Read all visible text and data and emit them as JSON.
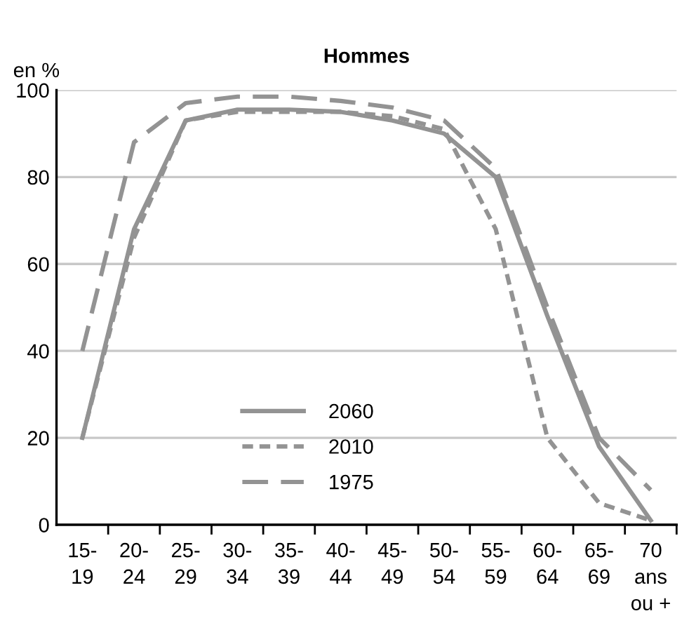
{
  "chart_data": {
    "type": "line",
    "title": "Hommes",
    "ylabel": "en %",
    "categories": [
      "15-\n19",
      "20-\n24",
      "25-\n29",
      "30-\n34",
      "35-\n39",
      "40-\n44",
      "45-\n49",
      "50-\n54",
      "55-\n59",
      "60-\n64",
      "65-\n69",
      "70\nans\nou +"
    ],
    "series": [
      {
        "name": "2060",
        "color": "#939393",
        "line_style": "solid",
        "values": [
          20,
          68,
          93,
          95.5,
          95.5,
          95,
          93,
          90,
          80,
          48,
          18,
          1
        ]
      },
      {
        "name": "2010",
        "color": "#939393",
        "line_style": "dotted",
        "values": [
          20,
          66,
          93,
          95,
          95,
          95,
          94,
          91,
          68,
          20,
          5,
          1
        ]
      },
      {
        "name": "1975",
        "color": "#939393",
        "line_style": "dashed",
        "values": [
          40,
          88,
          97,
          98.5,
          98.5,
          97.5,
          96,
          93,
          82,
          50,
          20,
          8
        ]
      }
    ],
    "ylim": [
      0,
      100
    ],
    "yticks": [
      0,
      20,
      40,
      60,
      80,
      100
    ],
    "grid": "y",
    "legend": "bottom left",
    "marker": "none"
  }
}
